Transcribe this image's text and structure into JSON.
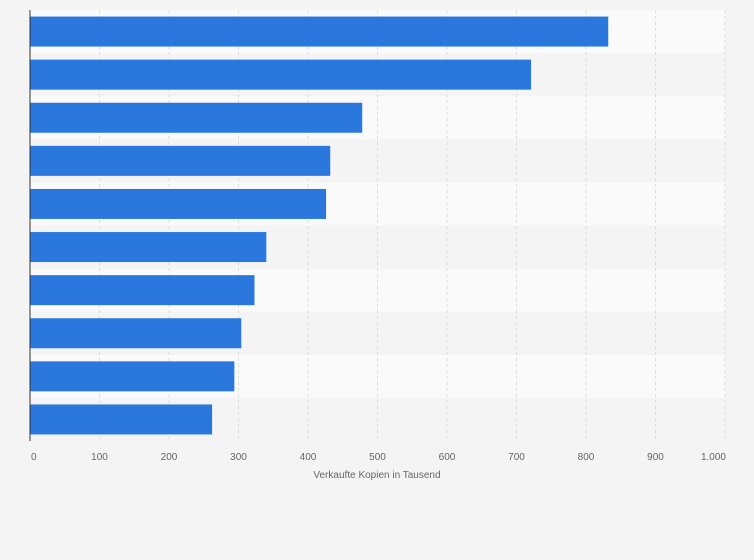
{
  "chart_data": {
    "type": "bar",
    "orientation": "horizontal",
    "categories": [
      "",
      "",
      "",
      "",
      "",
      "",
      "",
      "",
      "",
      ""
    ],
    "values": [
      832,
      721,
      478,
      432,
      426,
      340,
      323,
      304,
      294,
      262
    ],
    "title": "",
    "xlabel": "Verkaufte Kopien in Tausend",
    "ylabel": "",
    "xlim": [
      0,
      1000
    ],
    "xticks": [
      0,
      100,
      200,
      300,
      400,
      500,
      600,
      700,
      800,
      900,
      1000
    ],
    "xtick_labels": [
      "0",
      "100",
      "200",
      "300",
      "400",
      "500",
      "600",
      "700",
      "800",
      "900",
      "1.000"
    ],
    "grid": true,
    "legend": "none",
    "colors": {
      "bar": "#2a78de",
      "band_odd": "#f4f4f4",
      "band_even": "#fafafa",
      "grid": "#dcdcdc",
      "axis": "#333333",
      "text": "#666666"
    }
  }
}
